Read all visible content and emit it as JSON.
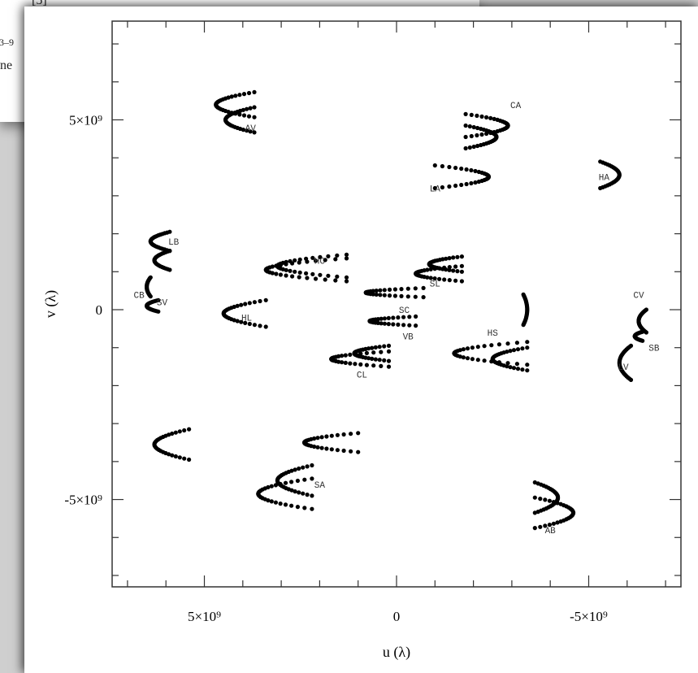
{
  "background_page": {
    "fragments": [
      "[5]",
      "3–9",
      "ne"
    ]
  },
  "chart_data": {
    "type": "scatter",
    "title": "",
    "xlabel": "u (λ)",
    "ylabel": "v (λ)",
    "x_axis_reversed": true,
    "xlim": [
      7400000000.0,
      -7400000000.0
    ],
    "ylim": [
      -7300000000.0,
      7600000000.0
    ],
    "x_tick_labels": [
      {
        "value": 5000000000.0,
        "label": "5×10⁹"
      },
      {
        "value": 0,
        "label": "0"
      },
      {
        "value": -5000000000.0,
        "label": "-5×10⁹"
      }
    ],
    "y_tick_labels": [
      {
        "value": 5000000000.0,
        "label": "5×10⁹"
      },
      {
        "value": 0,
        "label": "0"
      },
      {
        "value": -5000000000.0,
        "label": "-5×10⁹"
      }
    ],
    "grid": false,
    "marker_color": "#000000",
    "tracks": [
      {
        "label": "AV",
        "label_u": 3800000000.0,
        "label_v": 4800000000.0,
        "tips": [
          [
            4700000000.0,
            5400000000.0
          ],
          [
            4450000000.0,
            5000000000.0
          ]
        ],
        "open_u": 3700000000.0,
        "half_height": 330000000.0
      },
      {
        "label": "CA",
        "label_u": -3100000000.0,
        "label_v": 5400000000.0,
        "tips": [
          [
            -2900000000.0,
            4850000000.0
          ],
          [
            -2600000000.0,
            4550000000.0
          ]
        ],
        "open_u": -1800000000.0,
        "half_height": 300000000.0
      },
      {
        "label": "LA",
        "label_u": -1000000000.0,
        "label_v": 3200000000.0,
        "tips": [
          [
            -2400000000.0,
            3500000000.0
          ]
        ],
        "open_u": -1000000000.0,
        "half_height": 300000000.0
      },
      {
        "label": "HA",
        "label_u": -5400000000.0,
        "label_v": 3500000000.0,
        "tips": [
          [
            -5800000000.0,
            3550000000.0
          ]
        ],
        "open_u": -5300000000.0,
        "half_height": 350000000.0
      },
      {
        "label": "LB",
        "label_u": 5800000000.0,
        "label_v": 1800000000.0,
        "tips": [
          [
            6400000000.0,
            1800000000.0
          ],
          [
            6300000000.0,
            1300000000.0
          ]
        ],
        "open_u": 5900000000.0,
        "half_height": 250000000.0
      },
      {
        "label": "HC",
        "label_u": 2000000000.0,
        "label_v": 1300000000.0,
        "tips": [
          [
            3400000000.0,
            1050000000.0
          ],
          [
            3100000000.0,
            1150000000.0
          ]
        ],
        "open_u": 1300000000.0,
        "half_height": 300000000.0
      },
      {
        "label": "SL",
        "label_u": -1000000000.0,
        "label_v": 700000000.0,
        "tips": [
          [
            -850000000.0,
            1200000000.0
          ],
          [
            -500000000.0,
            950000000.0
          ]
        ],
        "open_u": -1700000000.0,
        "half_height": 200000000.0
      },
      {
        "label": "CB",
        "label_u": 6700000000.0,
        "label_v": 400000000.0,
        "tips": [
          [
            6500000000.0,
            600000000.0
          ]
        ],
        "open_u": 6400000000.0,
        "half_height": 250000000.0
      },
      {
        "label": "SV",
        "label_u": 6100000000.0,
        "label_v": 200000000.0,
        "tips": [
          [
            6500000000.0,
            100000000.0
          ]
        ],
        "open_u": 6200000000.0,
        "half_height": 150000000.0
      },
      {
        "label": "HL",
        "label_u": 3900000000.0,
        "label_v": -200000000.0,
        "tips": [
          [
            4500000000.0,
            -100000000.0
          ]
        ],
        "open_u": 3400000000.0,
        "half_height": 350000000.0
      },
      {
        "label": "SC",
        "label_u": -200000000.0,
        "label_v": 0.0,
        "tips": [
          [
            800000000.0,
            450000000.0
          ]
        ],
        "open_u": -700000000.0,
        "half_height": 120000000.0
      },
      {
        "label": "CV",
        "label_u": -6300000000.0,
        "label_v": 400000000.0,
        "tips": [
          [
            -6300000000.0,
            -300000000.0
          ]
        ],
        "open_u": -6500000000.0,
        "half_height": 300000000.0
      },
      {
        "label": "HS",
        "label_u": -2500000000.0,
        "label_v": -600000000.0,
        "tips": [
          [
            -1500000000.0,
            -1150000000.0
          ],
          [
            -2500000000.0,
            -1300000000.0
          ]
        ],
        "open_u": -3400000000.0,
        "half_height": 300000000.0
      },
      {
        "label": "VB",
        "label_u": -300000000.0,
        "label_v": -700000000.0,
        "tips": [
          [
            700000000.0,
            -300000000.0
          ]
        ],
        "open_u": -500000000.0,
        "half_height": 120000000.0
      },
      {
        "label": "SB",
        "label_u": -6700000000.0,
        "label_v": -1000000000.0,
        "tips": [
          [
            -6200000000.0,
            -700000000.0
          ]
        ],
        "open_u": -6400000000.0,
        "half_height": 120000000.0
      },
      {
        "label": "LV",
        "label_u": -5900000000.0,
        "label_v": -1500000000.0,
        "tips": [
          [
            -5800000000.0,
            -1400000000.0
          ]
        ],
        "open_u": -6100000000.0,
        "half_height": 450000000.0
      },
      {
        "label": "CL",
        "label_u": 900000000.0,
        "label_v": -1700000000.0,
        "tips": [
          [
            1700000000.0,
            -1300000000.0
          ],
          [
            1100000000.0,
            -1150000000.0
          ]
        ],
        "open_u": 200000000.0,
        "half_height": 200000000.0
      },
      {
        "label": "",
        "label_u": 0.0,
        "label_v": 0.0,
        "tips": [
          [
            6300000000.0,
            -3550000000.0
          ]
        ],
        "open_u": 5400000000.0,
        "half_height": 400000000.0
      },
      {
        "label": "",
        "label_u": 0.0,
        "label_v": 0.0,
        "tips": [
          [
            2400000000.0,
            -3500000000.0
          ]
        ],
        "open_u": 1000000000.0,
        "half_height": 250000000.0
      },
      {
        "label": "SA",
        "label_u": 2000000000.0,
        "label_v": -4600000000.0,
        "tips": [
          [
            3600000000.0,
            -4850000000.0
          ],
          [
            3100000000.0,
            -4500000000.0
          ]
        ],
        "open_u": 2200000000.0,
        "half_height": 400000000.0
      },
      {
        "label": "AB",
        "label_u": -4000000000.0,
        "label_v": -5800000000.0,
        "tips": [
          [
            -4600000000.0,
            -5350000000.0
          ],
          [
            -4200000000.0,
            -4950000000.0
          ]
        ],
        "open_u": -3600000000.0,
        "half_height": 400000000.0
      },
      {
        "label": "",
        "label_u": 0.0,
        "label_v": 0.0,
        "tips": [
          [
            -3400000000.0,
            0.0
          ]
        ],
        "open_u": -3300000000.0,
        "half_height": 400000000.0
      }
    ]
  }
}
